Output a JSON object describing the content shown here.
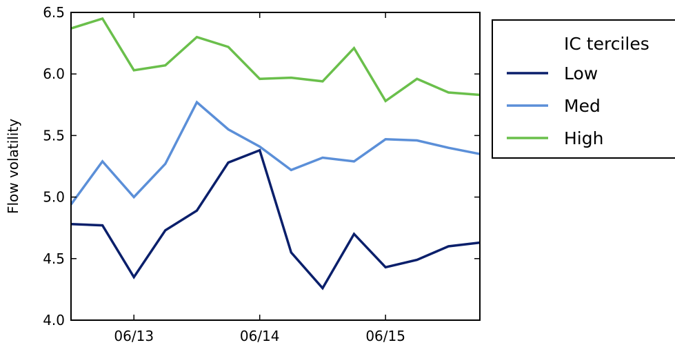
{
  "chart_data": {
    "type": "line",
    "ylabel": "Flow volatility",
    "xlabel": "",
    "xlim": [
      "06/12 12:00",
      "06/15 18:00"
    ],
    "ylim": [
      4.0,
      6.5
    ],
    "yticks": [
      "4.0",
      "4.5",
      "5.0",
      "5.5",
      "6.0",
      "6.5"
    ],
    "xticks": [
      {
        "label": "06/13",
        "value": "06/13 00:00"
      },
      {
        "label": "06/14",
        "value": "06/14 00:00"
      },
      {
        "label": "06/15",
        "value": "06/15 00:00"
      }
    ],
    "x": [
      "06/12 12:00",
      "06/12 18:00",
      "06/13 00:00",
      "06/13 06:00",
      "06/13 12:00",
      "06/13 18:00",
      "06/14 00:00",
      "06/14 06:00",
      "06/14 12:00",
      "06/14 18:00",
      "06/15 00:00",
      "06/15 06:00",
      "06/15 12:00",
      "06/15 18:00"
    ],
    "legend": {
      "title": "IC terciles",
      "placement": "outside-right"
    },
    "grid": false,
    "series": [
      {
        "name": "Low",
        "color": "#0a1f6b",
        "values": [
          4.78,
          4.77,
          4.35,
          4.73,
          4.89,
          5.28,
          5.38,
          4.55,
          4.26,
          4.7,
          4.43,
          4.49,
          4.6,
          4.63
        ]
      },
      {
        "name": "Med",
        "color": "#5b8fd8",
        "values": [
          4.94,
          5.29,
          5.0,
          5.27,
          5.77,
          5.55,
          5.41,
          5.22,
          5.32,
          5.29,
          5.47,
          5.46,
          5.4,
          5.35
        ]
      },
      {
        "name": "High",
        "color": "#6abf4b",
        "values": [
          6.37,
          6.45,
          6.03,
          6.07,
          6.3,
          6.22,
          5.96,
          5.97,
          5.94,
          6.21,
          5.78,
          5.96,
          5.85,
          5.83
        ]
      }
    ]
  }
}
